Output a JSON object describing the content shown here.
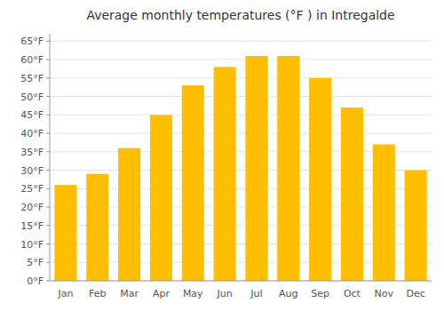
{
  "chart_data": {
    "type": "bar",
    "title": "Average monthly temperatures (°F ) in Intregalde",
    "categories": [
      "Jan",
      "Feb",
      "Mar",
      "Apr",
      "May",
      "Jun",
      "Jul",
      "Aug",
      "Sep",
      "Oct",
      "Nov",
      "Dec"
    ],
    "values": [
      26,
      29,
      36,
      45,
      53,
      58,
      61,
      61,
      55,
      47,
      37,
      30
    ],
    "color": "#FFBE00",
    "ylim": [
      0,
      67
    ],
    "yticks": [
      {
        "value": 0,
        "label": "0°F"
      },
      {
        "value": 5,
        "label": "5°F"
      },
      {
        "value": 10,
        "label": "10°F"
      },
      {
        "value": 15,
        "label": "15°F"
      },
      {
        "value": 20,
        "label": "20°F"
      },
      {
        "value": 25,
        "label": "25°F"
      },
      {
        "value": 30,
        "label": "30°F"
      },
      {
        "value": 35,
        "label": "35°F"
      },
      {
        "value": 40,
        "label": "40°F"
      },
      {
        "value": 45,
        "label": "45°F"
      },
      {
        "value": 50,
        "label": "50°F"
      },
      {
        "value": 55,
        "label": "55°F"
      },
      {
        "value": 60,
        "label": "60°F"
      },
      {
        "value": 65,
        "label": "65°F"
      }
    ],
    "grid": true
  }
}
